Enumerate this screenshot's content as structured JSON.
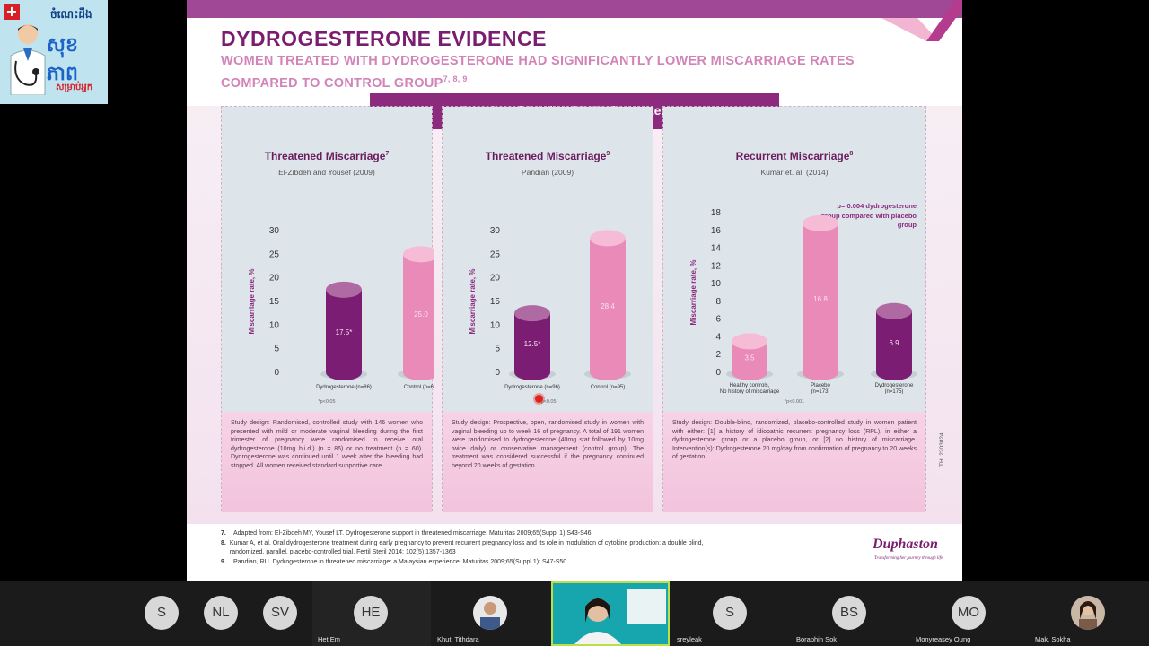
{
  "logo": {
    "line1": "ចំណេះដឹង",
    "line2": "សុខភាព",
    "line3": "សម្រាប់អ្នក"
  },
  "slide": {
    "title": "DYDROGESTERONE EVIDENCE",
    "subtitle": "WOMEN TREATED WITH DYDROGESTERONE HAD SIGNIFICANTLY LOWER MISCARRIAGE RATES COMPARED TO CONTROL GROUP",
    "subtitle_refs": "7, 8, 9",
    "banner": "Results of Study with Dydrogesterone",
    "side_code": "THL2203024",
    "brand": "Duphaston",
    "brand_tagline": "Transforming her journey through life",
    "colors": {
      "primary": "#8c2a7e",
      "dark_bar": "#7a1d73",
      "pink_bar": "#e98ab8",
      "study_bg": "#f2c3dd"
    }
  },
  "chart_data": [
    {
      "type": "bar",
      "title": "Threatened Miscarriage",
      "title_ref": "7",
      "subtitle": "El-Zibdeh and Yousef (2009)",
      "ylabel": "Miscarriage rate, %",
      "ylim": [
        0,
        30
      ],
      "yticks": [
        "30",
        "25",
        "20",
        "15",
        "10",
        "5",
        "0"
      ],
      "categories": [
        "Dydrogesterone (n=86)",
        "Control (n=60)"
      ],
      "values": [
        17.5,
        25.0
      ],
      "value_labels": [
        "17.5*",
        "25.0"
      ],
      "footnote": "*p<0.05",
      "study": "Study design: Randomised, controlled study with 146 women who presented with mild or moderate vaginal bleeding during the first trimester of pregnancy were randomised to receive oral dydrogesterone (10mg b.i.d.) (n = 86) or no treatment (n = 60). Dydrogesterone was continued until 1 week after the bleeding had stopped. All women received standard supportive care."
    },
    {
      "type": "bar",
      "title": "Threatened Miscarriage",
      "title_ref": "9",
      "subtitle": "Pandian (2009)",
      "ylabel": "Miscarriage rate, %",
      "ylim": [
        0,
        30
      ],
      "yticks": [
        "30",
        "25",
        "20",
        "15",
        "10",
        "5",
        "0"
      ],
      "categories": [
        "Dydrogesterone (n=96)",
        "Control (n=95)"
      ],
      "values": [
        12.5,
        28.4
      ],
      "value_labels": [
        "12.5*",
        "28.4"
      ],
      "footnote": "*p<0.05",
      "study": "Study design: Prospective, open, randomised study in women with vaginal bleeding up to week 16 of pregnancy. A total of 191 women were randomised to dydrogesterone (40mg stat followed by 10mg twice daily) or conservative management (control group). The treatment was considered successful if the pregnancy continued beyond 20 weeks of gestation."
    },
    {
      "type": "bar",
      "title": "Recurrent Miscarriage",
      "title_ref": "8",
      "subtitle": "Kumar et. al. (2014)",
      "ylabel": "Miscarriage rate, %",
      "ylim": [
        0,
        18
      ],
      "yticks": [
        "18",
        "16",
        "14",
        "12",
        "10",
        "8",
        "6",
        "4",
        "2",
        "0"
      ],
      "categories": [
        "Healthy controls, No history of miscarriage (n=174)",
        "Placebo (n=173)",
        "Dydrogesterone (n=175)"
      ],
      "values": [
        3.5,
        16.8,
        6.9
      ],
      "value_labels": [
        "3.5",
        "16.8",
        "6.9"
      ],
      "footnote": "*p<0.001",
      "pvalue_note": "p= 0.004 dydrogesterone group compared with placebo group",
      "study": "Study design: Double-blind, randomized, placebo-controlled study in women patient with either: [1] a history of idiopathic recurrent pregnancy loss (RPL), in either a dydrogesterone group or a placebo group, or [2] no history of miscarriage. Intervention(s): Dydrogesterone 20 mg/day from confirmation of pregnancy to 20 weeks of gestation."
    }
  ],
  "references": [
    {
      "num": "7.",
      "text": "Adapted from: El-Zibdeh MY, Yousef LT. Dydrogesterone support in threatened miscarriage. Maturitas 2009;65(Suppl 1):S43-S46"
    },
    {
      "num": "8.",
      "text": "Kumar A, et al. Oral dydrogesterone treatment during early pregnancy to prevent recurrent pregnancy loss and its role in modulation of cytokine production: a double blind, randomized, parallel, placebo-controlled trial. Fertil Steril 2014; 102(5):1357-1363"
    },
    {
      "num": "9.",
      "text": "Pandian, RU. Dydrogesterone in threatened miscarriage: a Malaysian experience. Maturitas 2009;65(Suppl 1): S47-S50"
    }
  ],
  "participants": [
    {
      "initials": "S",
      "name": ""
    },
    {
      "initials": "NL",
      "name": ""
    },
    {
      "initials": "SV",
      "name": ""
    },
    {
      "initials": "HE",
      "name": "Het Em"
    },
    {
      "initials": "",
      "name": "Khut, Tithdara"
    },
    {
      "initials": "",
      "name": ""
    },
    {
      "initials": "S",
      "name": "sreyleak"
    },
    {
      "initials": "BS",
      "name": "Boraphin Sok"
    },
    {
      "initials": "MO",
      "name": "Monyreasey Oung"
    },
    {
      "initials": "",
      "name": "Mak, Sokha"
    }
  ]
}
